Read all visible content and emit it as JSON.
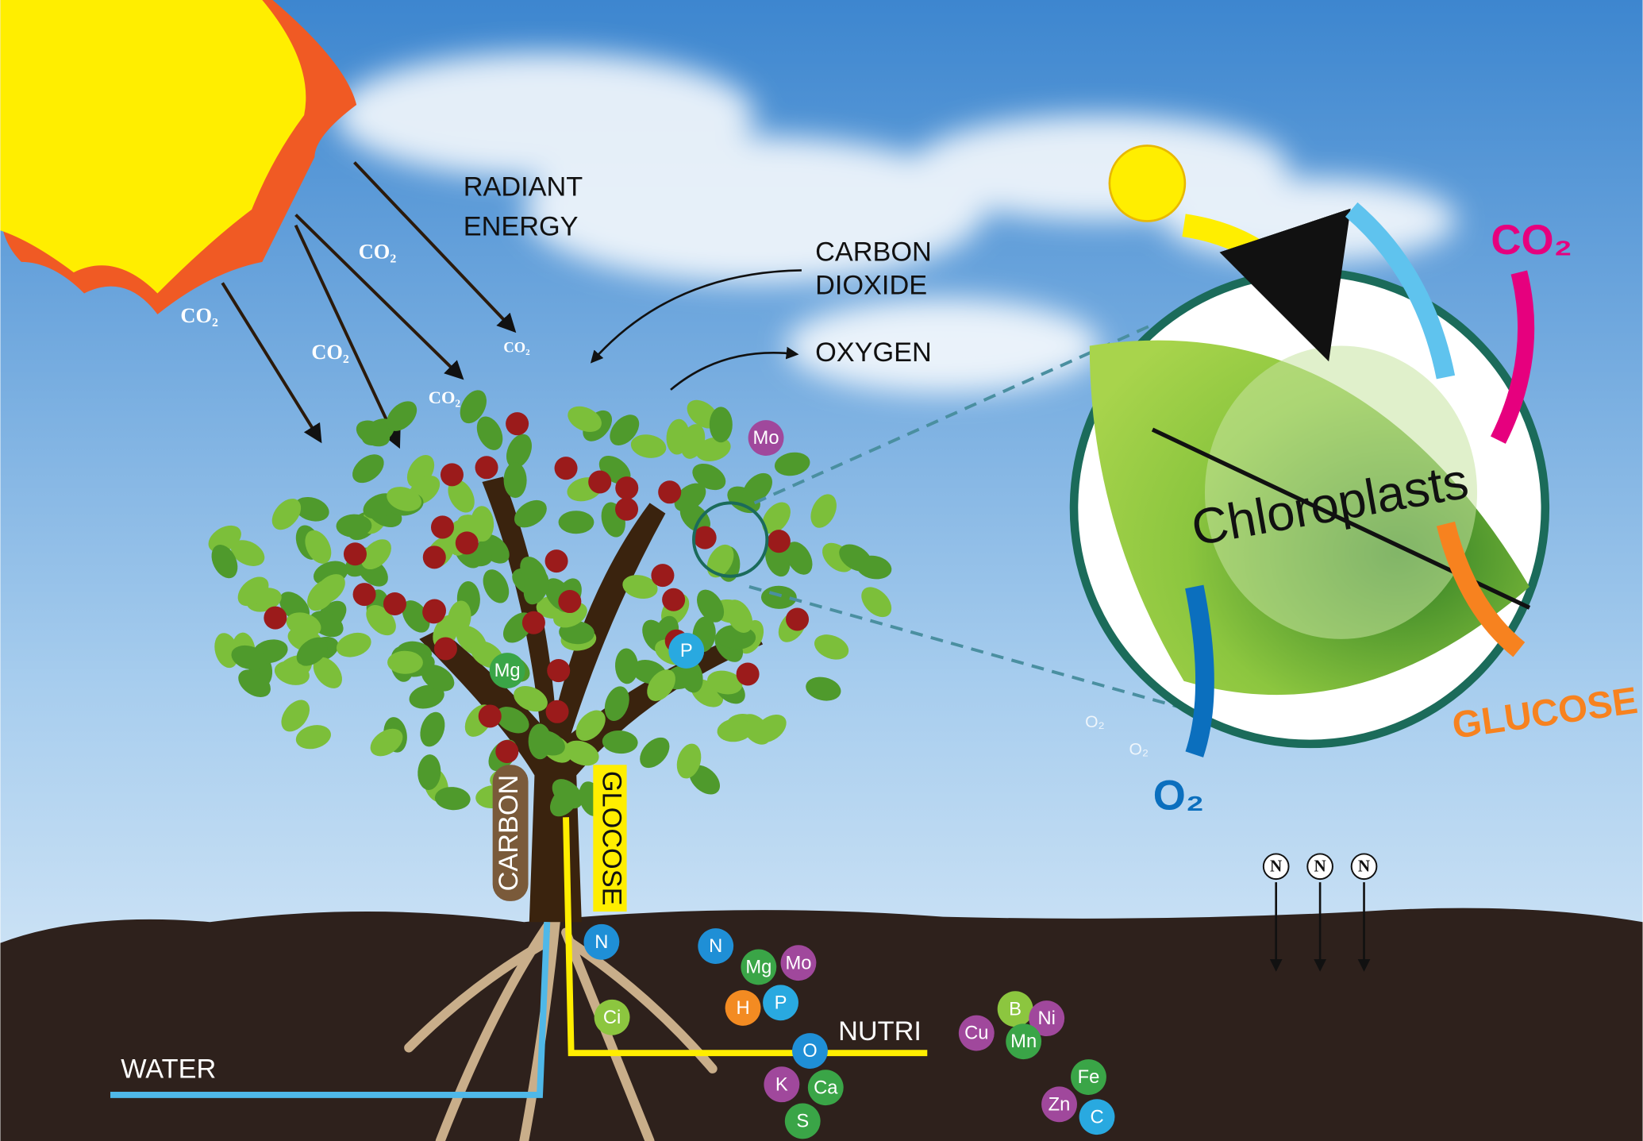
{
  "labels": {
    "radiant_energy": [
      "RADIANT",
      "ENERGY"
    ],
    "carbon_dioxide": [
      "CARBON",
      "DIOXIDE"
    ],
    "oxygen": "OXYGEN",
    "carbon": "CARBON",
    "glocose": "GLOCOSE",
    "water": "WATER",
    "nutri": "NUTRI",
    "chloroplasts": "Chloroplasts",
    "co2_inset": "CO₂",
    "glucose": "GLUCOSE",
    "o2_inset": "O₂"
  },
  "co2_labels": [
    "CO₂",
    "CO₂",
    "CO₂",
    "CO₂",
    "CO₂"
  ],
  "o2_small": [
    "O₂",
    "O₂"
  ],
  "nutrients": [
    {
      "label": "Mo",
      "color": "#a0489c"
    },
    {
      "label": "Mg",
      "color": "#3aa547"
    },
    {
      "label": "P",
      "color": "#29a9e0"
    },
    {
      "label": "N",
      "color": "#1f8fd6"
    },
    {
      "label": "N",
      "color": "#1f8fd6"
    },
    {
      "label": "Mg",
      "color": "#3aa547"
    },
    {
      "label": "Mo",
      "color": "#a0489c"
    },
    {
      "label": "H",
      "color": "#f38b22"
    },
    {
      "label": "P",
      "color": "#29a9e0"
    },
    {
      "label": "Ci",
      "color": "#8cc63f"
    },
    {
      "label": "O",
      "color": "#1f8fd6"
    },
    {
      "label": "K",
      "color": "#a0489c"
    },
    {
      "label": "Ca",
      "color": "#3aa547"
    },
    {
      "label": "S",
      "color": "#3aa547"
    },
    {
      "label": "Cu",
      "color": "#a0489c"
    },
    {
      "label": "B",
      "color": "#8cc63f"
    },
    {
      "label": "Ni",
      "color": "#a0489c"
    },
    {
      "label": "Mn",
      "color": "#3aa547"
    },
    {
      "label": "Fe",
      "color": "#3aa547"
    },
    {
      "label": "Zn",
      "color": "#a0489c"
    },
    {
      "label": "C",
      "color": "#29a9e0"
    }
  ],
  "nitrogen": [
    "N",
    "N",
    "N"
  ]
}
